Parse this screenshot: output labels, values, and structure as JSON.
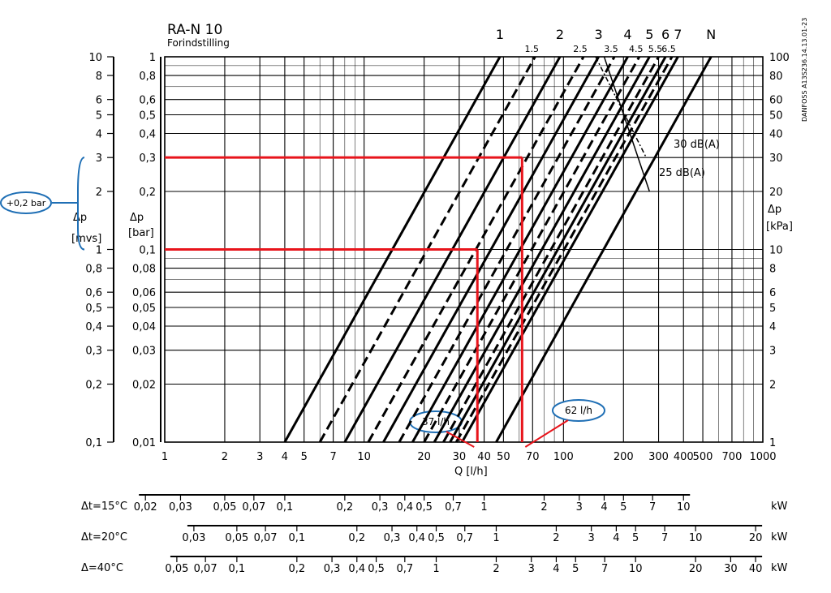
{
  "chart_data": {
    "type": "line",
    "title": "RA-N 10",
    "subtitle": "Forindstilling",
    "xlabel": "Q  [l/h]",
    "x_scale": "log",
    "y_scale": "log",
    "xlim": [
      1,
      1000
    ],
    "ylim_bar": [
      0.01,
      1
    ],
    "x_ticks": [
      "1",
      "2",
      "3",
      "4",
      "5",
      "7",
      "10",
      "20",
      "30",
      "40",
      "50",
      "70",
      "100",
      "200",
      "300",
      "400",
      "500",
      "700",
      "1000"
    ],
    "left_axis": {
      "label_top": "Δp",
      "label_unit": "[mvs]",
      "ticks": [
        "10",
        "8",
        "6",
        "5",
        "4",
        "3",
        "2",
        "1",
        "0,8",
        "0,6",
        "0,5",
        "0,4",
        "0,3",
        "0,2",
        "0,1"
      ]
    },
    "mid_axis": {
      "label_top": "Δp",
      "label_unit": "[bar]",
      "ticks": [
        "1",
        "0,8",
        "0,6",
        "0,5",
        "0,4",
        "0,3",
        "0,2",
        "0,1",
        "0,08",
        "0,06",
        "0,05",
        "0,04",
        "0,03",
        "0,02",
        "0,01"
      ]
    },
    "right_axis": {
      "label_top": "Δp",
      "label_unit": "[kPa]",
      "ticks": [
        "100",
        "80",
        "60",
        "50",
        "40",
        "30",
        "20",
        "10",
        "8",
        "6",
        "5",
        "4",
        "3",
        "2",
        "1"
      ]
    },
    "series": [
      {
        "name": "1",
        "style": "solid",
        "x": [
          4,
          48
        ],
        "y": [
          0.01,
          1
        ]
      },
      {
        "name": "1.5",
        "style": "dashed",
        "x": [
          6,
          72
        ],
        "y": [
          0.01,
          1
        ]
      },
      {
        "name": "2",
        "style": "solid",
        "x": [
          8,
          96
        ],
        "y": [
          0.01,
          1
        ]
      },
      {
        "name": "2.5",
        "style": "dashed",
        "x": [
          10.5,
          126
        ],
        "y": [
          0.01,
          1
        ]
      },
      {
        "name": "3",
        "style": "solid",
        "x": [
          12.5,
          150
        ],
        "y": [
          0.01,
          1
        ]
      },
      {
        "name": "3.5",
        "style": "dashed",
        "x": [
          15,
          180
        ],
        "y": [
          0.01,
          1
        ]
      },
      {
        "name": "4",
        "style": "solid",
        "x": [
          17.5,
          210
        ],
        "y": [
          0.01,
          1
        ]
      },
      {
        "name": "4.5",
        "style": "dashed",
        "x": [
          20,
          240
        ],
        "y": [
          0.01,
          1
        ]
      },
      {
        "name": "5",
        "style": "solid",
        "x": [
          22.5,
          270
        ],
        "y": [
          0.01,
          1
        ]
      },
      {
        "name": "5.5",
        "style": "dashed",
        "x": [
          25,
          300
        ],
        "y": [
          0.01,
          1
        ]
      },
      {
        "name": "6",
        "style": "solid",
        "x": [
          27,
          325
        ],
        "y": [
          0.01,
          1
        ]
      },
      {
        "name": "6.5",
        "style": "dashed",
        "x": [
          29,
          350
        ],
        "y": [
          0.01,
          1
        ]
      },
      {
        "name": "7",
        "style": "solid",
        "x": [
          31,
          375
        ],
        "y": [
          0.01,
          1
        ]
      },
      {
        "name": "N",
        "style": "solid",
        "x": [
          46,
          550
        ],
        "y": [
          0.01,
          1
        ]
      }
    ],
    "curve_labels_top": [
      "1",
      "2",
      "3",
      "4",
      "5",
      "6",
      "7",
      "N"
    ],
    "curve_labels_half": [
      "1.5",
      "2.5",
      "3.5",
      "4.5",
      "5.5",
      "6.5"
    ],
    "noise_lines": [
      {
        "label": "30  dB(A)",
        "x": [
          145,
          260
        ],
        "y": [
          1,
          0.3
        ]
      },
      {
        "label": "25  dB(A)",
        "x": [
          160,
          270
        ],
        "y": [
          1,
          0.2
        ]
      }
    ],
    "annotations": [
      {
        "text": "+0,2 bar",
        "kind": "callout-left"
      },
      {
        "text": "37 l/h",
        "x": 37,
        "y": 0.1,
        "kind": "marker"
      },
      {
        "text": "62 l/h",
        "x": 62,
        "y": 0.3,
        "kind": "marker"
      }
    ],
    "reference_lines": [
      {
        "y": 0.3,
        "x_end": 62
      },
      {
        "y": 0.1,
        "x_end": 37
      }
    ],
    "side_code": "DANFOSS A13S236.14.13.01-23",
    "power_scales": [
      {
        "label": "Δt=15°C",
        "unit": "kW",
        "ticks": [
          [
            "0,02",
            0.8
          ],
          [
            "0,03",
            1.2
          ],
          [
            "0,05",
            2
          ],
          [
            "0,07",
            2.8
          ],
          [
            "0,1",
            4
          ],
          [
            "0,2",
            8
          ],
          [
            "0,3",
            12
          ],
          [
            "0,4",
            16
          ],
          [
            "0,5",
            20
          ],
          [
            "0,7",
            28
          ],
          [
            "1",
            40
          ],
          [
            "2",
            80
          ],
          [
            "3",
            120
          ],
          [
            "4",
            160
          ],
          [
            "5",
            200
          ],
          [
            "7",
            280
          ],
          [
            "10",
            400
          ]
        ]
      },
      {
        "label": "Δt=20°C",
        "unit": "kW",
        "ticks": [
          [
            "0,03",
            1.4
          ],
          [
            "0,05",
            2.3
          ],
          [
            "0,07",
            3.2
          ],
          [
            "0,1",
            4.6
          ],
          [
            "0,2",
            9.2
          ],
          [
            "0,3",
            13.8
          ],
          [
            "0,4",
            18.4
          ],
          [
            "0,5",
            23
          ],
          [
            "0,7",
            32
          ],
          [
            "1",
            46
          ],
          [
            "2",
            92
          ],
          [
            "3",
            138
          ],
          [
            "4",
            184
          ],
          [
            "5",
            230
          ],
          [
            "7",
            322
          ],
          [
            "10",
            460
          ],
          [
            "20",
            920
          ]
        ]
      },
      {
        "label": "Δ=40°C",
        "unit": "kW",
        "ticks": [
          [
            "0,05",
            1.15
          ],
          [
            "0,07",
            1.6
          ],
          [
            "0,1",
            2.3
          ],
          [
            "0,2",
            4.6
          ],
          [
            "0,3",
            6.9
          ],
          [
            "0,4",
            9.2
          ],
          [
            "0,5",
            11.5
          ],
          [
            "0,7",
            16
          ],
          [
            "1",
            23
          ],
          [
            "2",
            46
          ],
          [
            "3",
            69
          ],
          [
            "4",
            92
          ],
          [
            "5",
            115
          ],
          [
            "7",
            161
          ],
          [
            "10",
            230
          ],
          [
            "20",
            460
          ],
          [
            "30",
            690
          ],
          [
            "40",
            920
          ]
        ]
      }
    ],
    "colors": {
      "line": "#000000",
      "highlight": "#e8141b",
      "callout": "#1f6fb5"
    }
  }
}
